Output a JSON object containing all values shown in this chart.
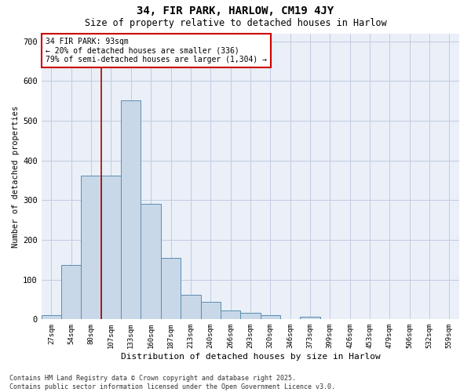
{
  "title1": "34, FIR PARK, HARLOW, CM19 4JY",
  "title2": "Size of property relative to detached houses in Harlow",
  "xlabel": "Distribution of detached houses by size in Harlow",
  "ylabel": "Number of detached properties",
  "categories": [
    "27sqm",
    "54sqm",
    "80sqm",
    "107sqm",
    "133sqm",
    "160sqm",
    "187sqm",
    "213sqm",
    "240sqm",
    "266sqm",
    "293sqm",
    "320sqm",
    "346sqm",
    "373sqm",
    "399sqm",
    "426sqm",
    "453sqm",
    "479sqm",
    "506sqm",
    "532sqm",
    "559sqm"
  ],
  "values": [
    10,
    137,
    362,
    362,
    551,
    290,
    155,
    62,
    45,
    22,
    16,
    10,
    0,
    6,
    0,
    0,
    0,
    0,
    0,
    0,
    0
  ],
  "bar_color": "#c8d8e8",
  "bar_edge_color": "#5b8db0",
  "grid_color": "#c0cce0",
  "bg_color": "#eaeff8",
  "vline_index": 2,
  "vline_color": "#aa0000",
  "annotation_text": "34 FIR PARK: 93sqm\n← 20% of detached houses are smaller (336)\n79% of semi-detached houses are larger (1,304) →",
  "annotation_box_color": "#cc0000",
  "footer_text": "Contains HM Land Registry data © Crown copyright and database right 2025.\nContains public sector information licensed under the Open Government Licence v3.0.",
  "ylim": [
    0,
    720
  ],
  "yticks": [
    0,
    100,
    200,
    300,
    400,
    500,
    600,
    700
  ]
}
